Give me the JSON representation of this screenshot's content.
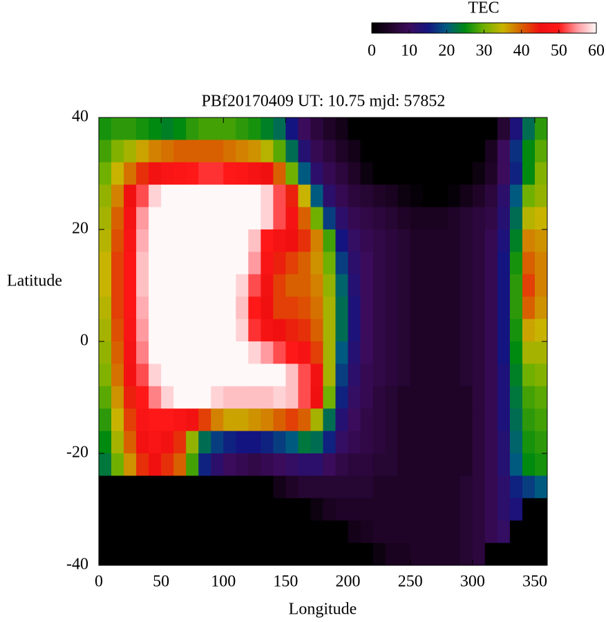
{
  "chart_data": {
    "type": "heatmap",
    "title": "PBf20170409  UT: 10.75  mjd: 57852",
    "xlabel": "Longitude",
    "ylabel": "Latitude",
    "colorbar_label": "TEC",
    "xlim": [
      0,
      360
    ],
    "ylim": [
      -40,
      40
    ],
    "xticks": [
      0,
      50,
      100,
      150,
      200,
      250,
      300,
      350
    ],
    "yticks": [
      -40,
      -20,
      0,
      20,
      40
    ],
    "zlim": [
      0,
      60
    ],
    "zticks": [
      0,
      10,
      20,
      30,
      40,
      50,
      60
    ],
    "colormap": [
      "#000000",
      "#200428",
      "#3c0c5c",
      "#141480",
      "#005a80",
      "#008a10",
      "#70b000",
      "#c8b400",
      "#d86000",
      "#f01010",
      "#ff1818",
      "#ff9aa0",
      "#fff8f8"
    ],
    "z": [
      [
        26,
        27,
        27,
        26,
        25,
        24,
        25,
        27,
        28,
        28,
        28,
        27,
        26,
        24,
        22,
        15,
        10,
        7,
        5,
        3,
        0,
        0,
        0,
        0,
        0,
        0,
        0,
        0,
        0,
        0,
        0,
        0,
        6,
        14,
        22,
        27
      ],
      [
        28,
        31,
        33,
        36,
        38,
        39,
        40,
        40,
        40,
        40,
        39,
        38,
        37,
        34,
        29,
        22,
        13,
        9,
        7,
        5,
        3,
        0,
        0,
        0,
        0,
        0,
        0,
        0,
        0,
        0,
        0,
        4,
        10,
        17,
        25,
        29
      ],
      [
        30,
        35,
        39,
        43,
        46,
        48,
        49,
        50,
        51,
        51,
        50,
        49,
        47,
        45,
        40,
        30,
        20,
        12,
        9,
        7,
        5,
        2,
        0,
        0,
        0,
        0,
        0,
        0,
        0,
        0,
        2,
        5,
        10,
        16,
        25,
        31
      ],
      [
        32,
        38,
        45,
        52,
        58,
        60,
        60,
        60,
        60,
        60,
        60,
        60,
        60,
        58,
        52,
        44,
        35,
        20,
        12,
        9,
        7,
        6,
        5,
        4,
        2,
        1,
        0,
        0,
        1,
        3,
        5,
        7,
        12,
        20,
        30,
        32
      ],
      [
        33,
        40,
        47,
        55,
        60,
        60,
        60,
        60,
        60,
        60,
        60,
        60,
        60,
        58,
        52,
        47,
        40,
        30,
        18,
        12,
        9,
        8,
        7,
        6,
        5,
        4,
        4,
        4,
        5,
        6,
        7,
        8,
        13,
        22,
        34,
        35
      ],
      [
        34,
        41,
        48,
        56,
        60,
        60,
        60,
        60,
        60,
        60,
        60,
        60,
        57,
        50,
        47,
        45,
        43,
        38,
        28,
        15,
        11,
        9,
        8,
        7,
        6,
        5,
        5,
        5,
        5,
        6,
        7,
        9,
        14,
        24,
        38,
        37
      ],
      [
        35,
        42,
        49,
        57,
        60,
        60,
        60,
        60,
        60,
        60,
        60,
        60,
        55,
        48,
        44,
        42,
        40,
        37,
        30,
        18,
        12,
        10,
        8,
        7,
        6,
        5,
        5,
        5,
        5,
        6,
        7,
        9,
        15,
        26,
        40,
        38
      ],
      [
        35,
        42,
        49,
        57,
        60,
        60,
        60,
        60,
        60,
        60,
        60,
        58,
        52,
        46,
        42,
        40,
        40,
        38,
        32,
        21,
        13,
        10,
        8,
        7,
        6,
        5,
        5,
        5,
        5,
        6,
        7,
        9,
        15,
        27,
        42,
        38
      ],
      [
        34,
        42,
        49,
        56,
        60,
        60,
        60,
        60,
        60,
        60,
        60,
        57,
        50,
        45,
        42,
        42,
        41,
        39,
        33,
        22,
        14,
        10,
        8,
        7,
        6,
        5,
        5,
        5,
        5,
        6,
        7,
        9,
        15,
        27,
        40,
        37
      ],
      [
        33,
        41,
        48,
        55,
        60,
        60,
        60,
        60,
        60,
        60,
        60,
        58,
        51,
        47,
        45,
        44,
        43,
        40,
        33,
        22,
        14,
        10,
        8,
        7,
        6,
        5,
        5,
        5,
        5,
        6,
        7,
        9,
        15,
        26,
        36,
        35
      ],
      [
        32,
        40,
        47,
        54,
        60,
        60,
        60,
        60,
        60,
        60,
        60,
        60,
        58,
        55,
        52,
        50,
        47,
        42,
        33,
        20,
        13,
        10,
        8,
        7,
        6,
        5,
        5,
        5,
        5,
        6,
        7,
        9,
        15,
        25,
        33,
        33
      ],
      [
        31,
        39,
        46,
        52,
        58,
        60,
        60,
        60,
        60,
        60,
        60,
        60,
        60,
        60,
        60,
        57,
        52,
        46,
        33,
        18,
        12,
        9,
        8,
        7,
        6,
        5,
        5,
        5,
        5,
        6,
        7,
        9,
        14,
        24,
        30,
        31
      ],
      [
        29,
        37,
        44,
        50,
        54,
        58,
        60,
        60,
        60,
        58,
        57,
        57,
        57,
        57,
        58,
        57,
        52,
        45,
        30,
        16,
        11,
        9,
        7,
        6,
        5,
        5,
        5,
        5,
        5,
        5,
        7,
        9,
        14,
        23,
        28,
        29
      ],
      [
        27,
        35,
        42,
        48,
        50,
        50,
        48,
        46,
        42,
        38,
        36,
        36,
        37,
        38,
        40,
        42,
        40,
        33,
        22,
        13,
        10,
        8,
        7,
        6,
        5,
        5,
        5,
        5,
        5,
        5,
        7,
        9,
        14,
        22,
        27,
        28
      ],
      [
        25,
        33,
        40,
        46,
        48,
        46,
        43,
        32,
        22,
        18,
        16,
        15,
        15,
        16,
        18,
        20,
        23,
        22,
        16,
        11,
        9,
        8,
        7,
        6,
        5,
        5,
        5,
        5,
        5,
        5,
        7,
        9,
        13,
        21,
        26,
        27
      ],
      [
        23,
        30,
        37,
        43,
        45,
        43,
        40,
        28,
        16,
        12,
        10,
        9,
        8,
        9,
        10,
        11,
        12,
        12,
        10,
        8,
        7,
        7,
        6,
        6,
        5,
        5,
        5,
        5,
        5,
        5,
        7,
        9,
        13,
        20,
        25,
        26
      ],
      [
        0,
        0,
        0,
        0,
        0,
        0,
        0,
        0,
        0,
        0,
        0,
        0,
        0,
        0,
        3,
        5,
        6,
        6,
        6,
        6,
        6,
        6,
        5,
        5,
        5,
        5,
        5,
        5,
        5,
        6,
        7,
        9,
        12,
        16,
        18,
        20
      ],
      [
        0,
        0,
        0,
        0,
        0,
        0,
        0,
        0,
        0,
        0,
        0,
        0,
        0,
        0,
        0,
        0,
        0,
        2,
        4,
        5,
        5,
        5,
        5,
        5,
        5,
        5,
        5,
        5,
        5,
        6,
        7,
        9,
        12,
        14,
        0,
        0
      ],
      [
        0,
        0,
        0,
        0,
        0,
        0,
        0,
        0,
        0,
        0,
        0,
        0,
        0,
        0,
        0,
        0,
        0,
        0,
        0,
        0,
        3,
        4,
        5,
        5,
        5,
        5,
        5,
        5,
        5,
        6,
        7,
        9,
        11,
        0,
        0,
        0
      ],
      [
        0,
        0,
        0,
        0,
        0,
        0,
        0,
        0,
        0,
        0,
        0,
        0,
        0,
        0,
        0,
        0,
        0,
        0,
        0,
        0,
        0,
        0,
        2,
        4,
        4,
        5,
        5,
        5,
        5,
        6,
        7,
        0,
        0,
        0,
        0,
        0
      ]
    ]
  }
}
